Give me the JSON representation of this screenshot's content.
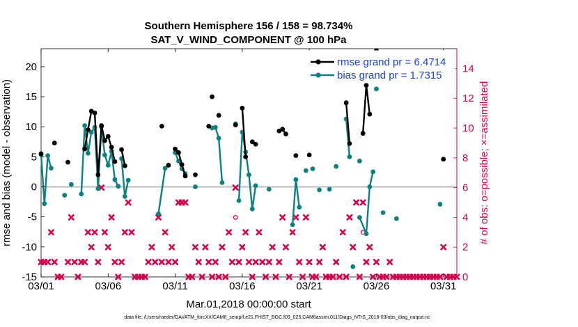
{
  "chart_data": {
    "type": "line",
    "title": "Southern Hemisphere 156 / 158 = 98.734%",
    "subtitle": "SAT_V_WIND_COMPONENT @ 100 hPa",
    "xlabel": "Mar.01,2018 00:00:00 start",
    "ylabel": "rmse and bias (model - observation)",
    "ylabel_right": "# of obs: o=possible; ×=assimilated",
    "footnote": "data file: /Users/raeder/DAI/ATM_forcXX/CAM6_setup/f.e21.FHIST_BGC.f09_025.CAM6assim.011/Diags_NTrS_2018-03/obs_diag_output.nc",
    "xlim": [
      1,
      32
    ],
    "ylim": [
      -15,
      23
    ],
    "ylim_right": [
      0,
      15.33
    ],
    "x_ticks": [
      1,
      6,
      11,
      16,
      21,
      26,
      31
    ],
    "x_tick_labels": [
      "03/01",
      "03/06",
      "03/11",
      "03/16",
      "03/21",
      "03/26",
      "03/31"
    ],
    "y_ticks": [
      -15,
      -10,
      -5,
      0,
      5,
      10,
      15,
      20
    ],
    "y_tick_labels": [
      "-15",
      "-10",
      "-5",
      "0",
      "5",
      "10",
      "15",
      "20"
    ],
    "y2_ticks": [
      0,
      2,
      4,
      6,
      8,
      10,
      12,
      14
    ],
    "y2_tick_labels": [
      "0",
      "2",
      "4",
      "6",
      "8",
      "10",
      "12",
      "14"
    ],
    "zero_line": 0,
    "legend": {
      "position": "top-right"
    },
    "colors": {
      "rmse": "#000000",
      "bias": "#0f8080",
      "obs": "#d6004f",
      "zero": "#bfbfbf",
      "legend_text": "#1a3fd6",
      "right_axis": "#d6004f"
    },
    "series": [
      {
        "name": "rmse grand pr = 6.4714",
        "color": "#000000",
        "segments": [
          [
            [
              1.0,
              5.5
            ]
          ],
          [
            [
              2.0,
              7.3
            ]
          ],
          [
            [
              3.0,
              4.1
            ]
          ],
          [
            [
              4.25,
              6.3
            ],
            [
              4.5,
              9.5
            ],
            [
              4.75,
              12.6
            ],
            [
              5.0,
              12.3
            ],
            [
              5.25,
              2.0
            ],
            [
              5.5,
              10.2
            ],
            [
              5.75,
              7.7
            ],
            [
              6.0,
              8.4
            ],
            [
              6.25,
              6.6
            ],
            [
              6.5,
              4.2
            ]
          ],
          [
            [
              7.0,
              6.2
            ],
            [
              7.25,
              3.5
            ]
          ],
          [
            [
              10.0,
              10.1
            ]
          ],
          [
            [
              10.5,
              3.6
            ]
          ],
          [
            [
              11.0,
              6.3
            ],
            [
              11.25,
              5.7
            ],
            [
              11.5,
              3.7
            ],
            [
              11.75,
              1.8
            ]
          ],
          [
            [
              12.5,
              2.0
            ]
          ],
          [
            [
              13.5,
              10.1
            ]
          ],
          [
            [
              13.75,
              15.0
            ]
          ],
          [
            [
              14.25,
              11.9
            ]
          ],
          [
            [
              15.5,
              10.3
            ]
          ],
          [
            [
              16.0,
              13.1
            ],
            [
              16.25,
              5.0
            ]
          ],
          [
            [
              16.75,
              7.5
            ],
            [
              17.0,
              7.1
            ]
          ],
          [
            [
              18.75,
              9.3
            ],
            [
              19.0,
              9.6
            ],
            [
              19.25,
              8.8
            ]
          ],
          [
            [
              20.0,
              5.2
            ]
          ],
          [
            [
              21.0,
              5.3
            ]
          ],
          [
            [
              23.75,
              14.0
            ],
            [
              24.0,
              7.2
            ]
          ],
          [
            [
              25.0,
              8.9
            ],
            [
              25.25,
              16.9
            ],
            [
              25.5,
              12.1
            ]
          ],
          [
            [
              26.0,
              22.7
            ]
          ],
          [
            [
              31.0,
              4.6
            ]
          ]
        ]
      },
      {
        "name": "bias grand pr = 1.7315",
        "color": "#0f8080",
        "segments": [
          [
            [
              1.0,
              5.4
            ],
            [
              1.25,
              -2.8
            ],
            [
              1.5,
              5.2
            ],
            [
              1.75,
              3.1
            ]
          ],
          [
            [
              2.75,
              -1.4
            ]
          ],
          [
            [
              3.25,
              0.4
            ]
          ],
          [
            [
              4.0,
              -1.2
            ],
            [
              4.25,
              10.2
            ],
            [
              4.5,
              5.6
            ],
            [
              4.75,
              9.1
            ],
            [
              5.0,
              9.9
            ],
            [
              5.25,
              -0.3
            ],
            [
              5.5,
              10.0
            ],
            [
              5.75,
              5.3
            ],
            [
              6.0,
              3.6
            ],
            [
              6.25,
              5.9
            ],
            [
              6.5,
              1.2
            ],
            [
              6.75,
              0.1
            ]
          ],
          [
            [
              7.0,
              4.7
            ],
            [
              7.25,
              -1.6
            ],
            [
              7.5,
              1.1
            ]
          ],
          [
            [
              9.75,
              -4.5
            ],
            [
              10.25,
              3.1
            ]
          ],
          [
            [
              11.0,
              5.7
            ],
            [
              11.25,
              4.3
            ],
            [
              11.5,
              3.0
            ],
            [
              11.75,
              2.2
            ]
          ],
          [
            [
              12.5,
              0.0
            ]
          ],
          [
            [
              13.75,
              9.8
            ],
            [
              14.0,
              9.9
            ],
            [
              14.25,
              8.1
            ],
            [
              14.5,
              0.7
            ]
          ],
          [
            [
              15.5,
              10.5
            ]
          ],
          [
            [
              15.75,
              -2.3
            ],
            [
              16.0,
              9.1
            ],
            [
              16.25,
              5.8
            ],
            [
              16.5,
              2.0
            ],
            [
              16.75,
              -3.7
            ],
            [
              17.0,
              0.2
            ]
          ],
          [
            [
              18.0,
              -0.4
            ]
          ],
          [
            [
              19.75,
              -6.3
            ],
            [
              20.0,
              1.2
            ],
            [
              20.25,
              -3.4
            ]
          ],
          [
            [
              20.75,
              2.7
            ]
          ],
          [
            [
              21.25,
              3.0
            ]
          ],
          [
            [
              21.75,
              -0.5
            ]
          ],
          [
            [
              22.5,
              -0.4
            ]
          ],
          [
            [
              23.0,
              3.4
            ]
          ],
          [
            [
              23.75,
              11.3
            ],
            [
              24.0,
              5.0
            ]
          ],
          [
            [
              24.25,
              -13.3
            ]
          ],
          [
            [
              24.75,
              4.3
            ]
          ],
          [
            [
              24.75,
              -5.1
            ],
            [
              25.25,
              -7.8
            ],
            [
              25.5,
              0.0
            ],
            [
              25.75,
              2.5
            ]
          ],
          [
            [
              26.0,
              16.3
            ]
          ],
          [
            [
              26.5,
              -4.3
            ]
          ],
          [
            [
              27.5,
              -5.3
            ]
          ],
          [
            [
              30.75,
              -2.9
            ]
          ]
        ]
      }
    ],
    "obs_assimilated": {
      "marker": "x",
      "x": [
        1.0,
        1.25,
        1.5,
        1.75,
        2.0,
        2.25,
        2.5,
        3.0,
        3.25,
        3.5,
        3.75,
        4.0,
        4.25,
        4.5,
        4.75,
        5.0,
        5.25,
        5.5,
        5.75,
        6.0,
        6.25,
        6.5,
        6.75,
        7.0,
        7.25,
        7.5,
        7.75,
        8.0,
        8.25,
        8.5,
        8.75,
        9.0,
        9.25,
        9.5,
        9.75,
        10.0,
        10.25,
        10.5,
        10.75,
        11.0,
        11.25,
        11.5,
        11.75,
        12.0,
        12.25,
        12.5,
        12.75,
        13.0,
        13.25,
        13.5,
        13.75,
        14.0,
        14.25,
        14.5,
        14.75,
        15.0,
        15.25,
        15.5,
        15.75,
        16.0,
        16.25,
        16.5,
        16.75,
        17.0,
        17.25,
        17.5,
        17.75,
        18.0,
        18.25,
        18.5,
        18.75,
        19.0,
        19.25,
        19.5,
        19.75,
        20.0,
        20.25,
        20.5,
        20.75,
        21.0,
        21.25,
        21.5,
        21.75,
        22.0,
        22.25,
        22.5,
        22.75,
        23.0,
        23.25,
        23.5,
        23.75,
        24.0,
        24.25,
        24.5,
        24.75,
        25.0,
        25.25,
        25.5,
        25.75,
        26.0,
        26.25,
        26.5,
        26.75,
        27.0,
        27.25,
        27.5,
        27.75,
        28.0,
        28.25,
        28.5,
        28.75,
        29.0,
        29.25,
        29.5,
        29.75,
        30.0,
        30.25,
        30.5,
        30.75,
        31.0,
        31.25,
        31.5,
        31.75,
        32.0
      ],
      "values": [
        1,
        1,
        1,
        3,
        1,
        0,
        0,
        1,
        4,
        1,
        0,
        1,
        1,
        3,
        2,
        3,
        1,
        6,
        3,
        2,
        4,
        1,
        0,
        1,
        3,
        5,
        3,
        0,
        0,
        0,
        0,
        1,
        2,
        1,
        4,
        1,
        3,
        1,
        2,
        1,
        5,
        5,
        5,
        0,
        0,
        2,
        1,
        0,
        2,
        1,
        0,
        1,
        0,
        2,
        0,
        3,
        1,
        6,
        1,
        2,
        3,
        1,
        0,
        1,
        3,
        1,
        0,
        1,
        2,
        0,
        1,
        4,
        2,
        0,
        3,
        4,
        1,
        0,
        4,
        1,
        0,
        0,
        1,
        2,
        0,
        0,
        0,
        1,
        0,
        3,
        0,
        4,
        2,
        5,
        0,
        5,
        1,
        2,
        0,
        1,
        0,
        0,
        0,
        1,
        0,
        0,
        0,
        0,
        0,
        0,
        0,
        0,
        0,
        0,
        0,
        0,
        0,
        0,
        0,
        2,
        0,
        0,
        0,
        0
      ]
    },
    "obs_possible": {
      "marker": "o",
      "x": [
        15.5,
        25.0
      ],
      "values": [
        4,
        3
      ]
    }
  }
}
